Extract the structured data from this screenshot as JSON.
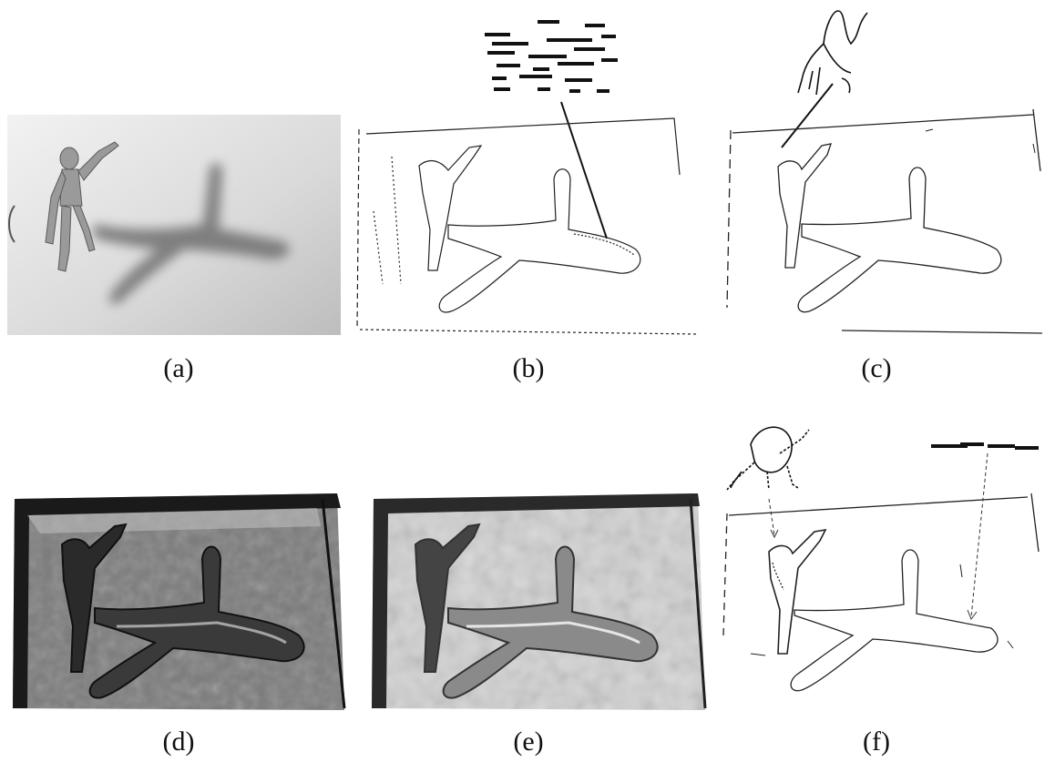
{
  "figure": {
    "panels": [
      {
        "label": "(a)",
        "kind": "photo"
      },
      {
        "label": "(b)",
        "kind": "edge-map-noisy"
      },
      {
        "label": "(c)",
        "kind": "edge-map-clean"
      },
      {
        "label": "(d)",
        "kind": "gray-level-map-dark"
      },
      {
        "label": "(e)",
        "kind": "gray-level-map-light"
      },
      {
        "label": "(f)",
        "kind": "edge-map-detailed"
      }
    ]
  },
  "colors": {
    "background": "#ffffff",
    "ink": "#111111",
    "photo_surface": "#dcdcdc",
    "shadow": "#6f6f6f",
    "map_dark": "#7a7a7a",
    "map_light": "#cfcfcf"
  }
}
